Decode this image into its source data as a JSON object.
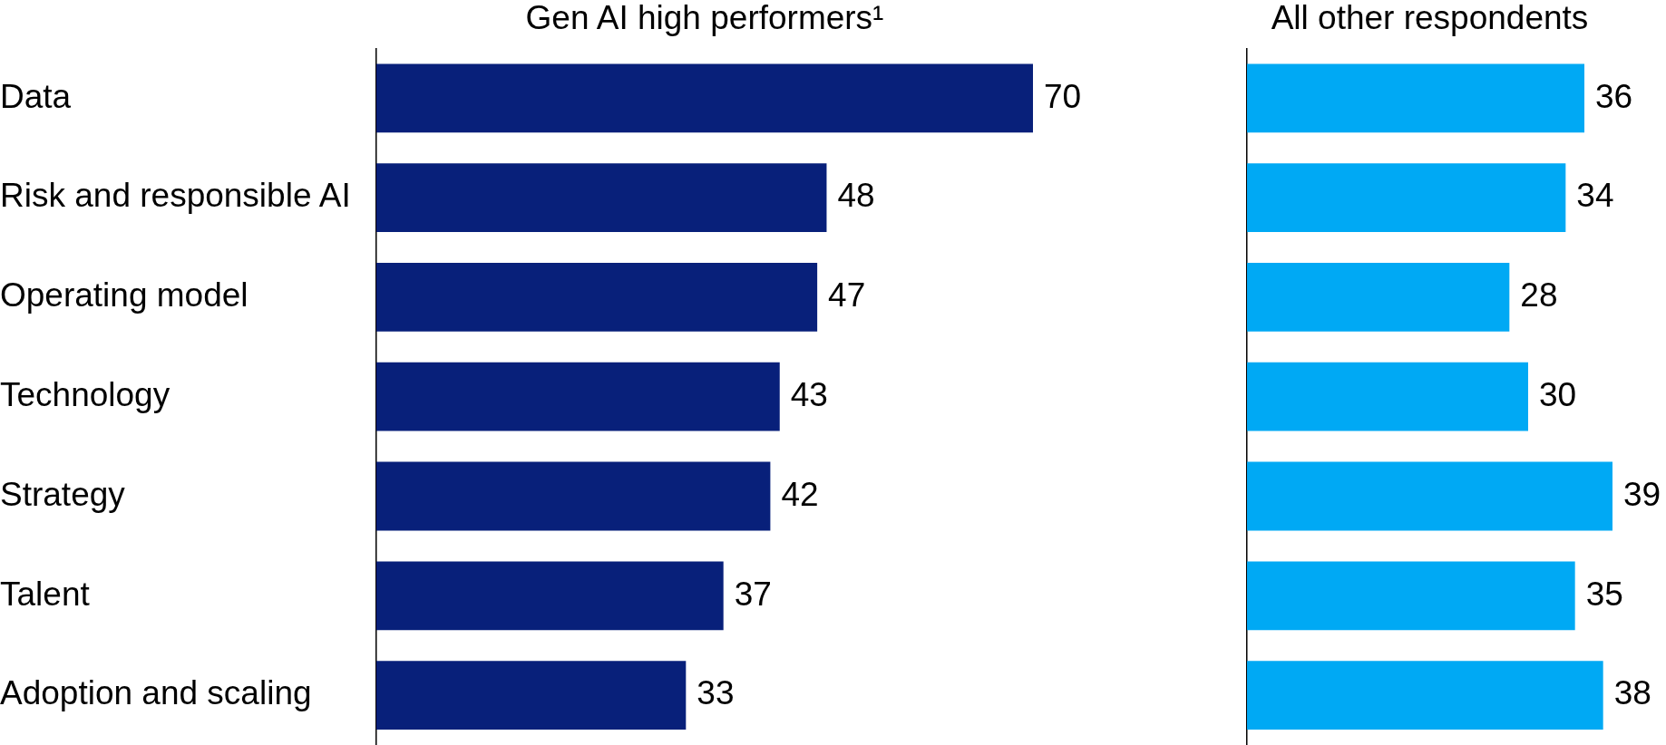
{
  "chart_data": [
    {
      "type": "bar",
      "orientation": "horizontal",
      "title": "Gen AI high performers¹",
      "categories": [
        "Data",
        "Risk and responsible AI",
        "Operating model",
        "Technology",
        "Strategy",
        "Talent",
        "Adoption and scaling"
      ],
      "values": [
        70,
        48,
        47,
        43,
        42,
        37,
        33
      ],
      "color": "#08207a",
      "data_labels": true,
      "tick_labels": "y"
    },
    {
      "type": "bar",
      "orientation": "horizontal",
      "title": "All other respondents",
      "categories": [
        null,
        null,
        null,
        null,
        null,
        null,
        null
      ],
      "values": [
        36,
        34,
        28,
        30,
        39,
        35,
        38
      ],
      "color": "#00a9f4",
      "data_labels": true,
      "tick_labels": false
    }
  ]
}
